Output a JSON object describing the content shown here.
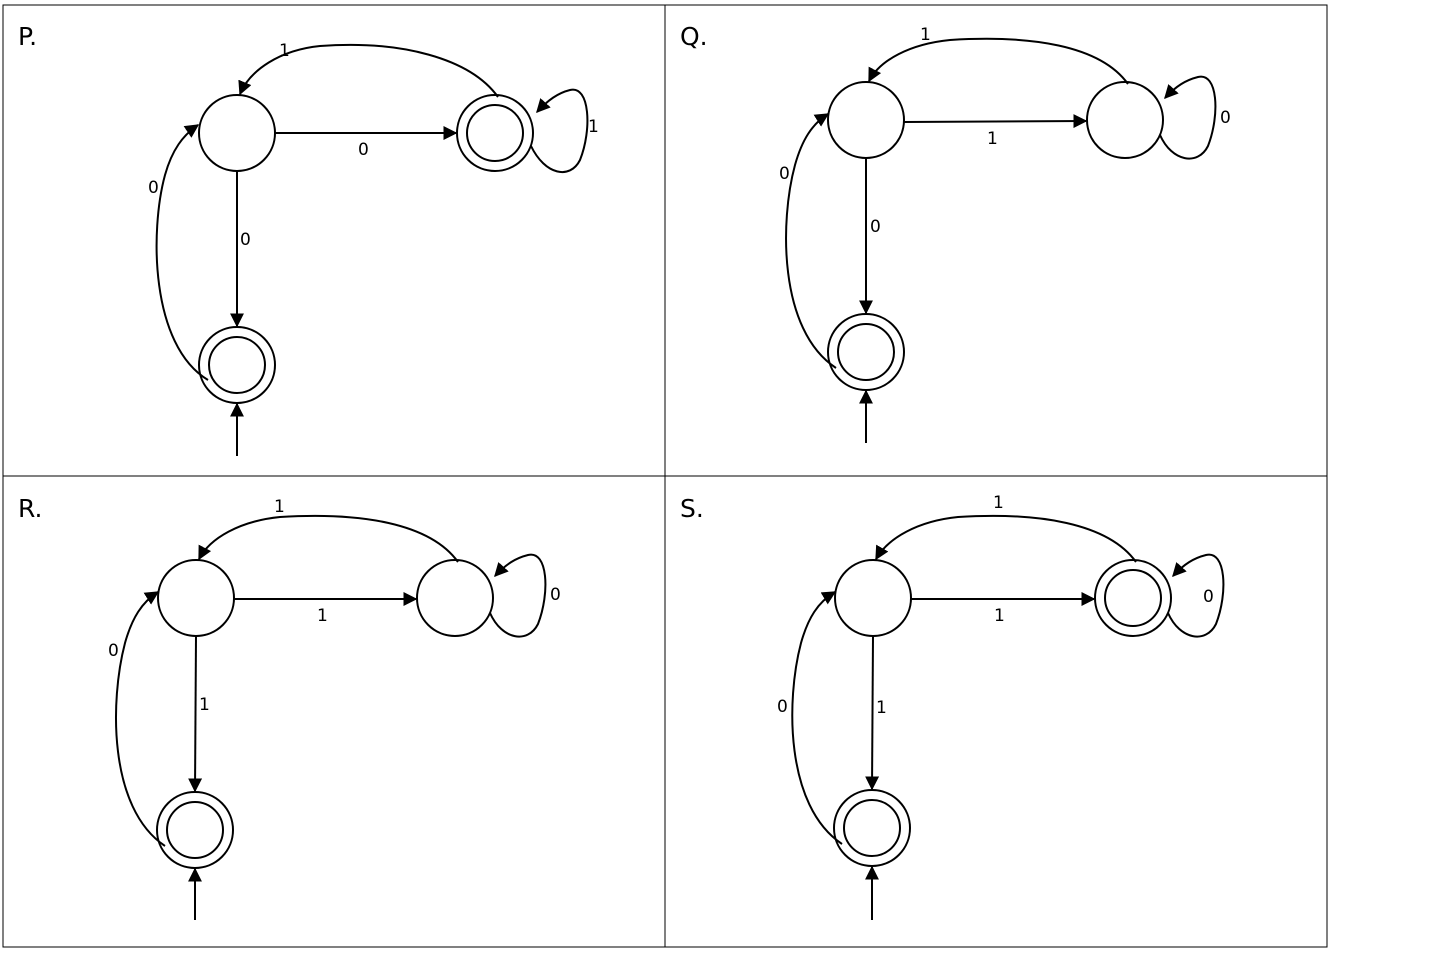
{
  "panels": [
    {
      "label": "P.",
      "accepting": {
        "top": false,
        "right": true,
        "bottom": true
      },
      "labels": {
        "top_arc": "1",
        "middle": "0",
        "self_loop": "1",
        "left_arc": "0",
        "down": "0"
      }
    },
    {
      "label": "Q.",
      "accepting": {
        "top": false,
        "right": false,
        "bottom": true
      },
      "labels": {
        "top_arc": "1",
        "middle": "1",
        "self_loop": "0",
        "left_arc": "0",
        "down": "0"
      }
    },
    {
      "label": "R.",
      "accepting": {
        "top": false,
        "right": false,
        "bottom": true
      },
      "labels": {
        "top_arc": "1",
        "middle": "1",
        "self_loop": "0",
        "left_arc": "0",
        "down": "1"
      }
    },
    {
      "label": "S.",
      "accepting": {
        "top": false,
        "right": true,
        "bottom": true
      },
      "labels": {
        "top_arc": "1",
        "middle": "1",
        "self_loop": "0",
        "left_arc": "0",
        "down": "1"
      }
    }
  ]
}
